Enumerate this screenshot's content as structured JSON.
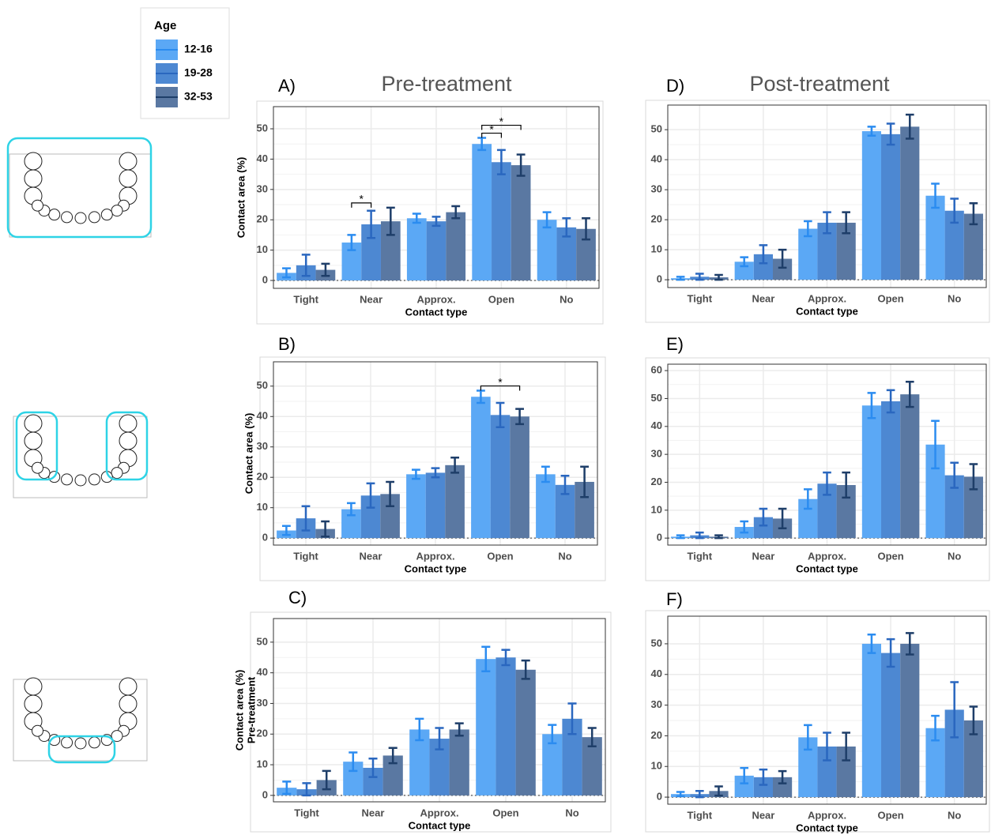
{
  "legend": {
    "title": "Age"
  },
  "chart_data": [
    {
      "type": "bar",
      "panel": "A)",
      "title": "Pre-treatment",
      "categories": [
        "Tight",
        "Near",
        "Approx.",
        "Open",
        "No"
      ],
      "series": [
        {
          "name": "12-16",
          "color": "#5ba8f5",
          "error_color": "#2b8cf0",
          "values": [
            2.5,
            12.5,
            20.5,
            45,
            20
          ],
          "errors": [
            1.5,
            2.5,
            1.5,
            2,
            2.5
          ]
        },
        {
          "name": "19-28",
          "color": "#4d88d2",
          "error_color": "#2a67bf",
          "values": [
            5,
            18.5,
            19.5,
            39,
            17.5
          ],
          "errors": [
            3.5,
            4.5,
            1.5,
            4,
            3
          ]
        },
        {
          "name": "32-53",
          "color": "#5a78a2",
          "error_color": "#1e3e69",
          "values": [
            3.5,
            19.5,
            22.5,
            38,
            17
          ],
          "errors": [
            2,
            4.5,
            2,
            3.5,
            3.5
          ]
        }
      ],
      "ylim": [
        -2.6,
        57.3
      ],
      "yticks": [
        0,
        10,
        20,
        30,
        40,
        50
      ],
      "grid": true,
      "x_label": "Contact type",
      "y_label": "Contact area (%)",
      "significance": [
        {
          "category": "Near",
          "series": [
            "12-16",
            "19-28"
          ],
          "label": "*"
        },
        {
          "category": "Open",
          "series": [
            "12-16",
            "19-28"
          ],
          "label": "*"
        },
        {
          "category": "Open",
          "series": [
            "12-16",
            "32-53"
          ],
          "label": "*"
        }
      ]
    },
    {
      "type": "bar",
      "panel": "B)",
      "categories": [
        "Tight",
        "Near",
        "Approx.",
        "Open",
        "No"
      ],
      "series": [
        {
          "name": "12-16",
          "color": "#5ba8f5",
          "error_color": "#2b8cf0",
          "values": [
            2.5,
            9.5,
            21,
            46.5,
            21
          ],
          "errors": [
            1.5,
            2,
            1.5,
            2,
            2.5
          ]
        },
        {
          "name": "19-28",
          "color": "#4d88d2",
          "error_color": "#2a67bf",
          "values": [
            6.5,
            14,
            21.5,
            40.5,
            17.5
          ],
          "errors": [
            4,
            4,
            1.5,
            4,
            3
          ]
        },
        {
          "name": "32-53",
          "color": "#5a78a2",
          "error_color": "#1e3e69",
          "values": [
            3,
            14.5,
            24,
            40,
            18.5
          ],
          "errors": [
            2.5,
            4,
            2.5,
            2.5,
            5
          ]
        }
      ],
      "ylim": [
        -2.3,
        58
      ],
      "yticks": [
        0,
        10,
        20,
        30,
        40,
        50
      ],
      "grid": true,
      "x_label": "Contact type",
      "y_label": "Contact area (%)",
      "significance": [
        {
          "category": "Open",
          "series": [
            "12-16",
            "32-53"
          ],
          "label": "*"
        }
      ]
    },
    {
      "type": "bar",
      "panel": "C)",
      "categories": [
        "Tight",
        "Near",
        "Approx.",
        "Open",
        "No"
      ],
      "series": [
        {
          "name": "12-16",
          "color": "#5ba8f5",
          "error_color": "#2b8cf0",
          "values": [
            2.5,
            11,
            21.5,
            44.5,
            20
          ],
          "errors": [
            2,
            3,
            3.5,
            4,
            3
          ]
        },
        {
          "name": "19-28",
          "color": "#4d88d2",
          "error_color": "#2a67bf",
          "values": [
            2,
            9,
            18.5,
            45,
            25
          ],
          "errors": [
            2,
            3,
            3.5,
            2.5,
            5
          ]
        },
        {
          "name": "32-53",
          "color": "#5a78a2",
          "error_color": "#1e3e69",
          "values": [
            5,
            13,
            21.5,
            41,
            19
          ],
          "errors": [
            3,
            2.5,
            2,
            3,
            3
          ]
        }
      ],
      "ylim": [
        -2.1,
        57.7
      ],
      "yticks": [
        0,
        10,
        20,
        30,
        40,
        50
      ],
      "grid": true,
      "x_label": "Contact type",
      "y_label": "Contact area (%)",
      "y_label_2": "Pre-treatment"
    },
    {
      "type": "bar",
      "panel": "D)",
      "title": "Post-treatment",
      "categories": [
        "Tight",
        "Near",
        "Approx.",
        "Open",
        "No"
      ],
      "series": [
        {
          "name": "12-16",
          "color": "#5ba8f5",
          "error_color": "#2b8cf0",
          "values": [
            0.5,
            6,
            17,
            49.5,
            28
          ],
          "errors": [
            0.5,
            1.5,
            2.5,
            1.5,
            4
          ]
        },
        {
          "name": "19-28",
          "color": "#4d88d2",
          "error_color": "#2a67bf",
          "values": [
            1,
            8.5,
            19,
            48.5,
            23
          ],
          "errors": [
            1,
            3,
            3.5,
            3.5,
            4
          ]
        },
        {
          "name": "32-53",
          "color": "#5a78a2",
          "error_color": "#1e3e69",
          "values": [
            0.8,
            7,
            19,
            51,
            22
          ],
          "errors": [
            0.8,
            3,
            3.5,
            4,
            3.5
          ]
        }
      ],
      "ylim": [
        -2.6,
        58.2
      ],
      "yticks": [
        0,
        10,
        20,
        30,
        40,
        50
      ],
      "grid": true,
      "x_label": "Contact type"
    },
    {
      "type": "bar",
      "panel": "E)",
      "categories": [
        "Tight",
        "Near",
        "Approx.",
        "Open",
        "No"
      ],
      "series": [
        {
          "name": "12-16",
          "color": "#5ba8f5",
          "error_color": "#2b8cf0",
          "values": [
            0.5,
            4,
            14,
            47.5,
            33.5
          ],
          "errors": [
            0.5,
            2,
            3.5,
            4.5,
            8.5
          ]
        },
        {
          "name": "19-28",
          "color": "#4d88d2",
          "error_color": "#2a67bf",
          "values": [
            1,
            7.5,
            19.5,
            49,
            22.5
          ],
          "errors": [
            1,
            3,
            4,
            4,
            4.5
          ]
        },
        {
          "name": "32-53",
          "color": "#5a78a2",
          "error_color": "#1e3e69",
          "values": [
            0.5,
            7,
            19,
            51.5,
            22
          ],
          "errors": [
            0.5,
            3.5,
            4.5,
            4.5,
            4.5
          ]
        }
      ],
      "ylim": [
        -2.5,
        62.3
      ],
      "yticks": [
        0,
        10,
        20,
        30,
        40,
        50,
        60
      ],
      "grid": true,
      "x_label": "Contact type"
    },
    {
      "type": "bar",
      "panel": "F)",
      "categories": [
        "Tight",
        "Near",
        "Approx.",
        "Open",
        "No"
      ],
      "series": [
        {
          "name": "12-16",
          "color": "#5ba8f5",
          "error_color": "#2b8cf0",
          "values": [
            1,
            7,
            19.5,
            50,
            22.5
          ],
          "errors": [
            0.7,
            2.5,
            4,
            3,
            4
          ]
        },
        {
          "name": "19-28",
          "color": "#4d88d2",
          "error_color": "#2a67bf",
          "values": [
            1,
            6.5,
            16.5,
            47,
            28.5
          ],
          "errors": [
            1,
            2.5,
            4.5,
            4.5,
            9
          ]
        },
        {
          "name": "32-53",
          "color": "#5a78a2",
          "error_color": "#1e3e69",
          "values": [
            2,
            6.5,
            16.5,
            50,
            25
          ],
          "errors": [
            1.5,
            2,
            4.5,
            3.5,
            4.5
          ]
        }
      ],
      "ylim": [
        -2.3,
        59
      ],
      "yticks": [
        0,
        10,
        20,
        30,
        40,
        50
      ],
      "grid": true,
      "x_label": "Contact type"
    }
  ]
}
